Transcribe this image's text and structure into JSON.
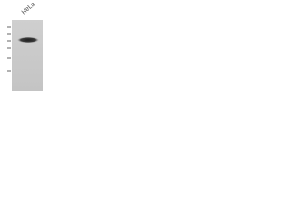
{
  "lane_label": "HeLa"
}
